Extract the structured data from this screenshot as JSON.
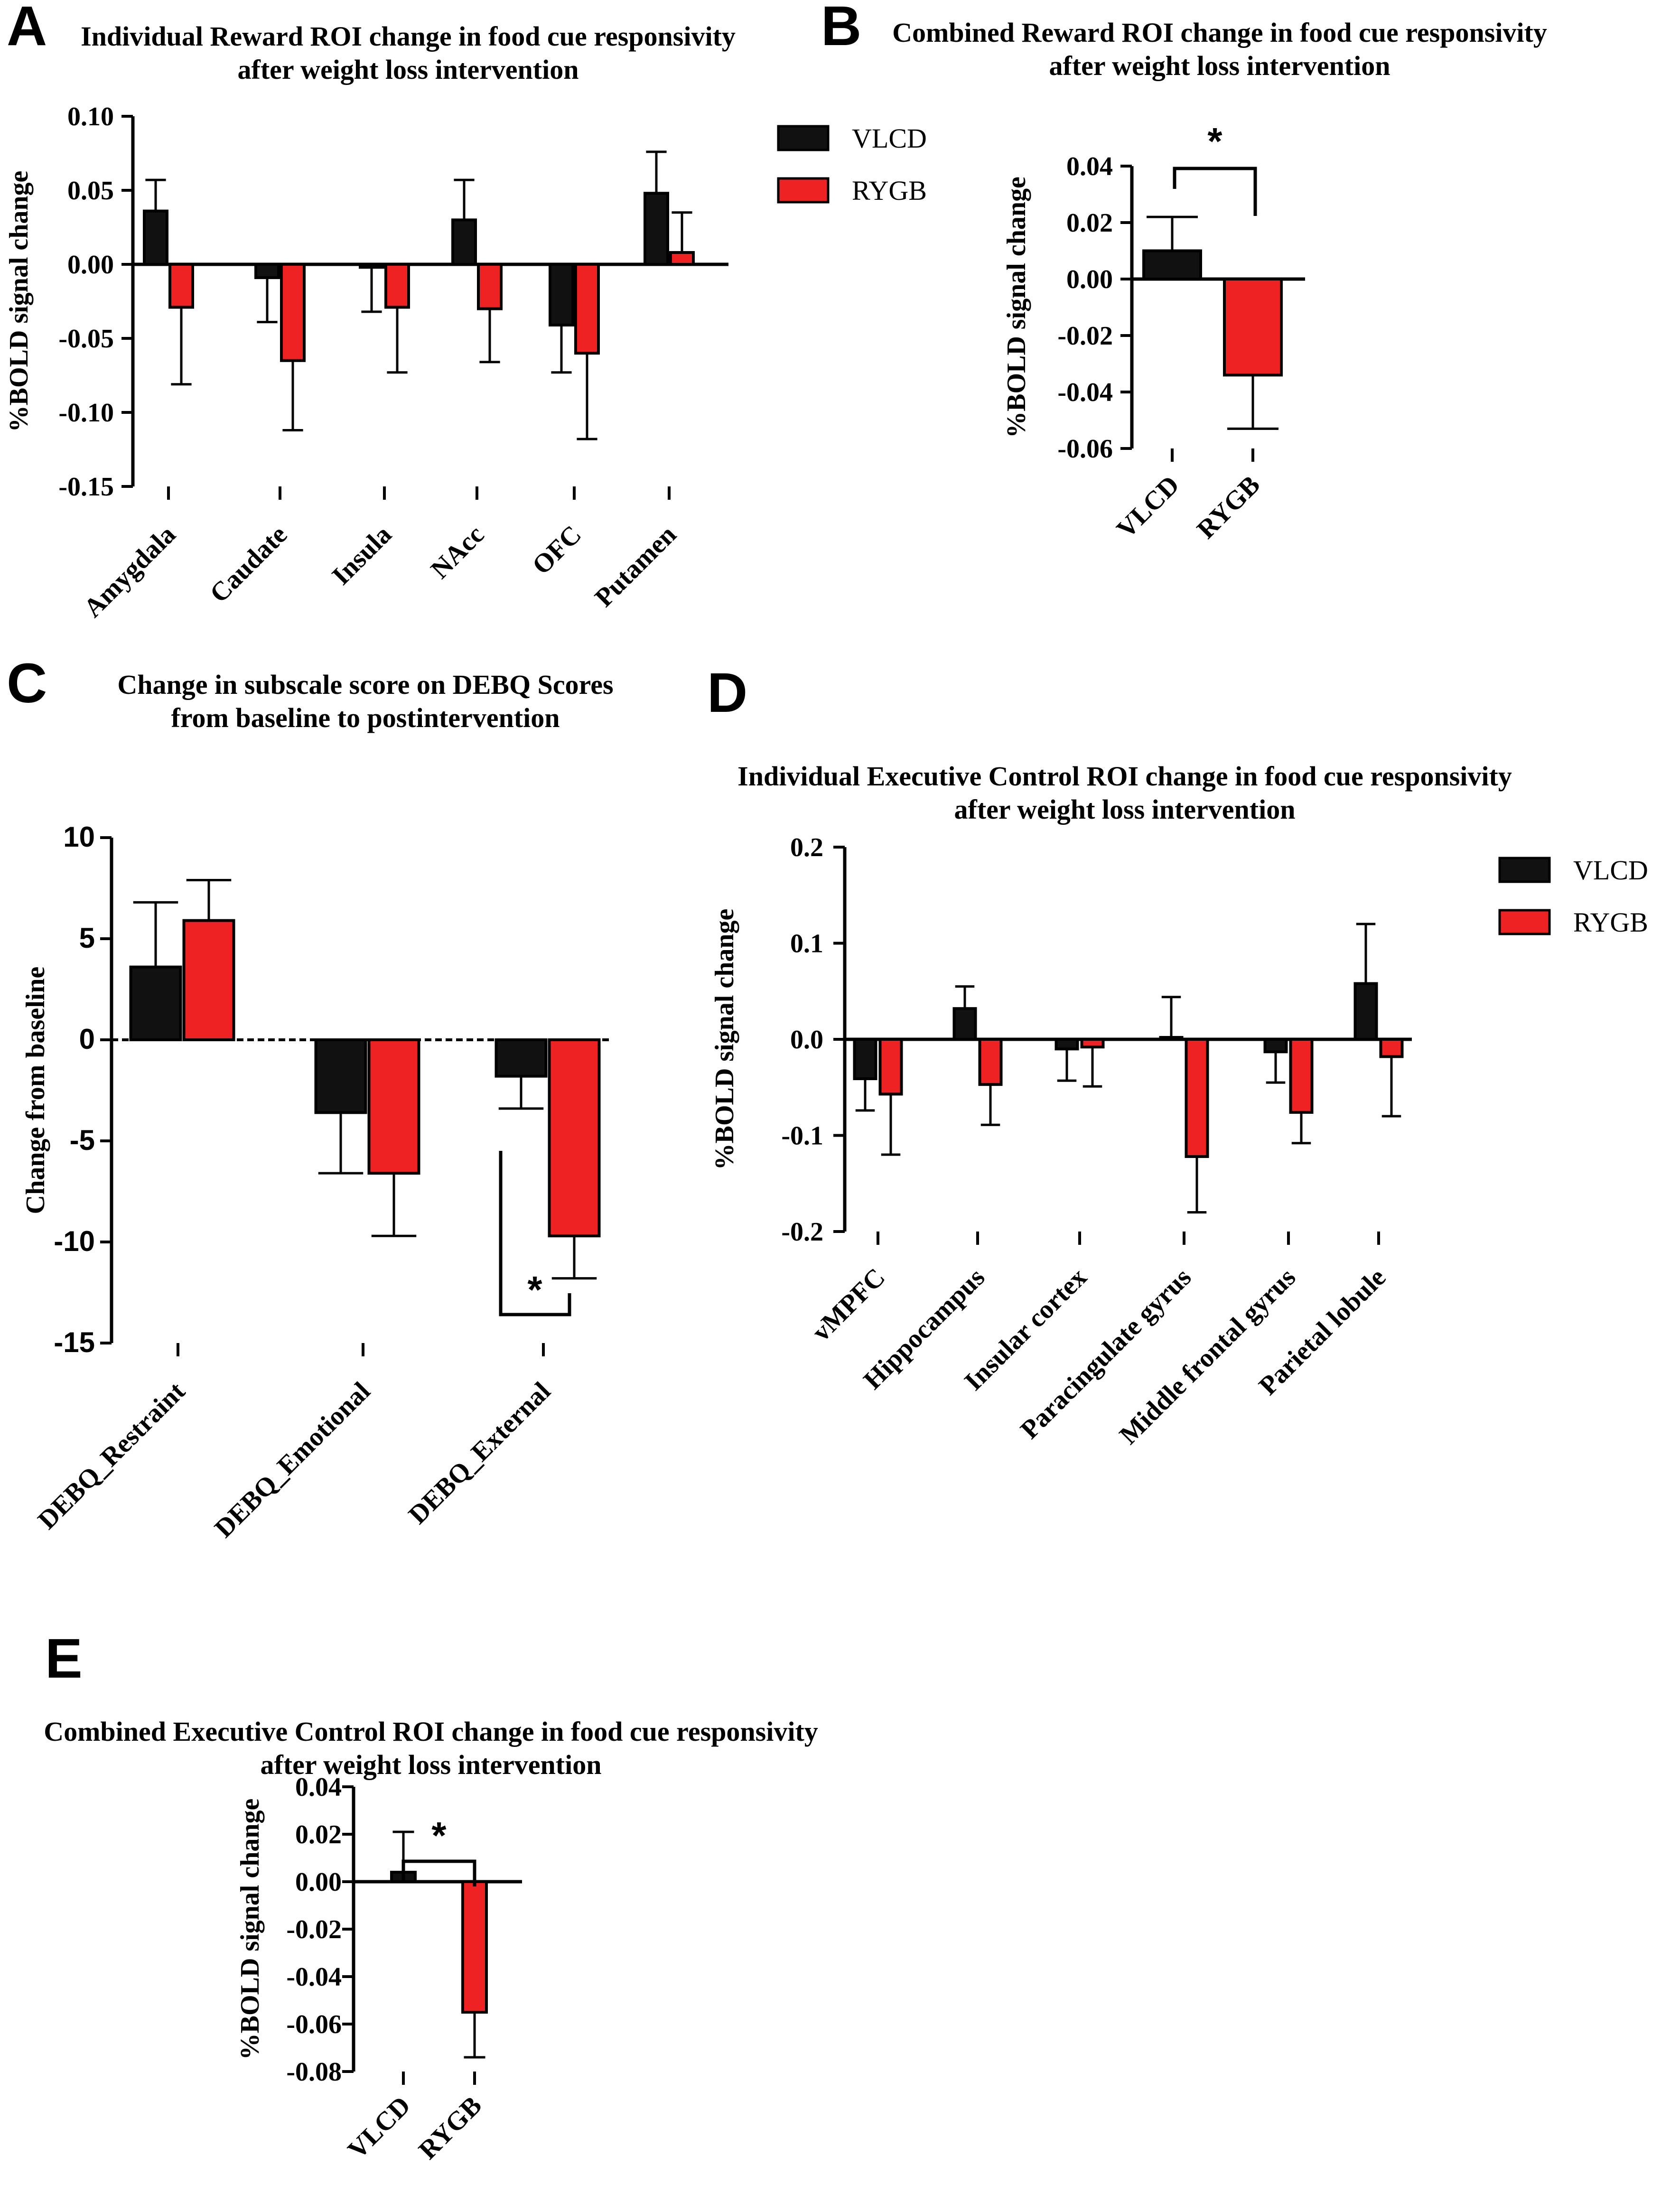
{
  "colors": {
    "vlcd": "#111111",
    "rygb": "#ee2222",
    "axis": "#000000"
  },
  "legend": {
    "vlcd": "VLCD",
    "rygb": "RYGB"
  },
  "panels": {
    "A": {
      "letter": "A"
    },
    "B": {
      "letter": "B",
      "significance": "*"
    },
    "C": {
      "letter": "C",
      "significance": "*"
    },
    "D": {
      "letter": "D"
    },
    "E": {
      "letter": "E",
      "significance": "*"
    }
  },
  "chart_data": [
    {
      "id": "A",
      "type": "bar",
      "title": [
        "Individual Reward ROI change in food cue responsivity",
        "after weight loss intervention"
      ],
      "ylabel": "%BOLD signal change",
      "xlabel": "",
      "ylim": [
        -0.15,
        0.1
      ],
      "yticks": [
        "0.10",
        "0.05",
        "0.00",
        "-0.05",
        "-0.10",
        "-0.15"
      ],
      "categories": [
        "Amygdala",
        "Caudate",
        "Insula",
        "NAcc",
        "OFC",
        "Putamen"
      ],
      "series": [
        {
          "name": "VLCD",
          "values": [
            0.036,
            -0.009,
            -0.002,
            0.03,
            -0.041,
            0.048
          ],
          "errors": [
            0.021,
            0.03,
            0.03,
            0.027,
            0.032,
            0.028
          ]
        },
        {
          "name": "RYGB",
          "values": [
            -0.029,
            -0.065,
            -0.029,
            -0.03,
            -0.06,
            0.008
          ],
          "errors": [
            0.052,
            0.047,
            0.044,
            0.036,
            0.058,
            0.027
          ]
        }
      ],
      "legend_position": "right"
    },
    {
      "id": "B",
      "type": "bar",
      "title": [
        "Combined Reward ROI change in food cue responsivity",
        "after weight loss intervention"
      ],
      "ylabel": "%BOLD signal change",
      "ylim": [
        -0.06,
        0.04
      ],
      "yticks": [
        "0.04",
        "0.02",
        "0.00",
        "-0.02",
        "-0.04",
        "-0.06"
      ],
      "categories": [
        "VLCD",
        "RYGB"
      ],
      "values": [
        0.01,
        -0.034
      ],
      "errors": [
        0.012,
        0.019
      ],
      "significance": "VLCD vs RYGB *"
    },
    {
      "id": "C",
      "type": "bar",
      "title": [
        "Change in subscale score on DEBQ Scores",
        "from baseline to postintervention"
      ],
      "ylabel": "Change from baseline",
      "ylim": [
        -15,
        10
      ],
      "yticks": [
        "10",
        "5",
        "0",
        "-5",
        "-10",
        "-15"
      ],
      "categories": [
        "DEBQ_Restraint",
        "DEBQ_Emotional",
        "DEBQ_External"
      ],
      "series": [
        {
          "name": "VLCD",
          "values": [
            3.6,
            -3.6,
            -1.8
          ],
          "errors": [
            3.2,
            3.0,
            1.6
          ]
        },
        {
          "name": "RYGB",
          "values": [
            5.9,
            -6.6,
            -9.7
          ],
          "errors": [
            2.0,
            3.1,
            2.1
          ]
        }
      ],
      "significance": "DEBQ_External VLCD vs RYGB *"
    },
    {
      "id": "D",
      "type": "bar",
      "title": [
        "Individual Executive Control ROI change in food cue responsivity",
        "after weight loss intervention"
      ],
      "ylabel": "%BOLD signal change",
      "ylim": [
        -0.2,
        0.2
      ],
      "yticks": [
        "0.2",
        "0.1",
        "0.0",
        "-0.1",
        "-0.2"
      ],
      "categories": [
        "vMPFC",
        "Hippocampus",
        "Insular cortex",
        "Paracingulate gyrus",
        "Middle frontal gyrus",
        "Parietal lobule"
      ],
      "series": [
        {
          "name": "VLCD",
          "values": [
            -0.041,
            0.032,
            -0.01,
            0.002,
            -0.013,
            0.058
          ],
          "errors": [
            0.033,
            0.023,
            0.033,
            0.042,
            0.032,
            0.062
          ]
        },
        {
          "name": "RYGB",
          "values": [
            -0.057,
            -0.047,
            -0.008,
            -0.122,
            -0.076,
            -0.018
          ],
          "errors": [
            0.063,
            0.042,
            0.041,
            0.058,
            0.032,
            0.062
          ]
        }
      ],
      "legend_position": "right"
    },
    {
      "id": "E",
      "type": "bar",
      "title": [
        "Combined Executive Control ROI change in food cue responsivity",
        "after weight loss intervention"
      ],
      "ylabel": "%BOLD signal change",
      "ylim": [
        -0.08,
        0.04
      ],
      "yticks": [
        "0.04",
        "0.02",
        "0.00",
        "-0.02",
        "-0.04",
        "-0.06",
        "-0.08"
      ],
      "categories": [
        "VLCD",
        "RYGB"
      ],
      "values": [
        0.004,
        -0.055
      ],
      "errors": [
        0.017,
        0.019
      ],
      "significance": "VLCD vs RYGB *"
    }
  ]
}
